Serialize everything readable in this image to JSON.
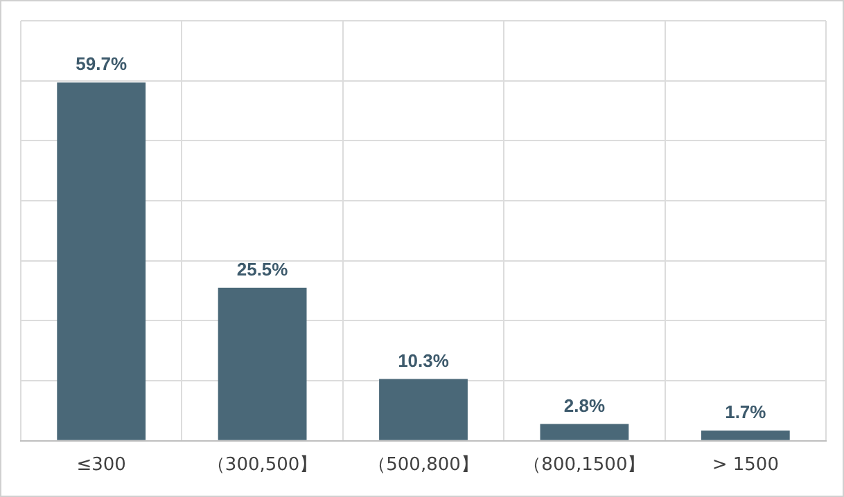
{
  "chart_data": {
    "type": "bar",
    "categories": [
      "≤300",
      "（300,500】",
      "（500,800】",
      "（800,1500】",
      "> 1500"
    ],
    "values": [
      59.7,
      25.5,
      10.3,
      2.8,
      1.7
    ],
    "value_labels": [
      "59.7%",
      "25.5%",
      "10.3%",
      "2.8%",
      "1.7%"
    ],
    "color": "#4a6878",
    "ylim": [
      0,
      70
    ],
    "yticks": [
      {
        "value": 0,
        "label": null
      },
      {
        "value": 10,
        "label": null
      },
      {
        "value": 20,
        "label": null
      },
      {
        "value": 30,
        "label": null
      },
      {
        "value": 40,
        "label": null
      },
      {
        "value": 50,
        "label": null
      },
      {
        "value": 60,
        "label": null
      },
      {
        "value": 70,
        "label": null
      }
    ],
    "tick_labels": "x",
    "grid": true
  }
}
